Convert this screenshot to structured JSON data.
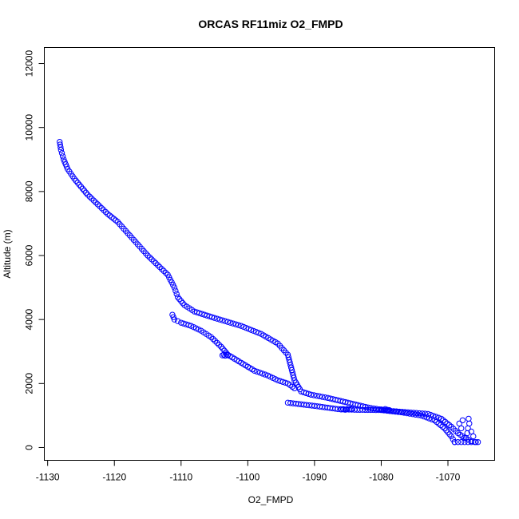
{
  "chart_data": {
    "type": "scatter",
    "title": "ORCAS RF11miz O2_FMPD",
    "xlabel": "O2_FMPD",
    "ylabel": "Altitude (m)",
    "xlim": [
      -1130.5,
      -1063
    ],
    "ylim": [
      -400,
      12500
    ],
    "xticks": [
      -1130,
      -1120,
      -1110,
      -1100,
      -1090,
      -1080,
      -1070
    ],
    "yticks": [
      0,
      2000,
      4000,
      6000,
      8000,
      10000,
      12000
    ],
    "grid": false,
    "marker": "open-circle",
    "color": "#0000ff",
    "series": [
      {
        "values": [
          [
            -1128.2,
            9550
          ],
          [
            -1128.0,
            9300
          ],
          [
            -1127.6,
            9000
          ],
          [
            -1127.0,
            8700
          ],
          [
            -1126.0,
            8400
          ],
          [
            -1125.0,
            8150
          ],
          [
            -1124.0,
            7900
          ],
          [
            -1122.5,
            7600
          ],
          [
            -1121.0,
            7300
          ],
          [
            -1119.5,
            7050
          ],
          [
            -1118.0,
            6700
          ],
          [
            -1116.5,
            6350
          ],
          [
            -1115.0,
            6000
          ],
          [
            -1113.5,
            5700
          ],
          [
            -1112.0,
            5400
          ],
          [
            -1111.0,
            5000
          ],
          [
            -1110.5,
            4700
          ],
          [
            -1109.5,
            4450
          ],
          [
            -1108.0,
            4250
          ],
          [
            -1105.0,
            4050
          ],
          [
            -1101.0,
            3800
          ],
          [
            -1098.0,
            3550
          ],
          [
            -1095.5,
            3250
          ],
          [
            -1094.0,
            2900
          ],
          [
            -1093.5,
            2500
          ],
          [
            -1093.0,
            2100
          ],
          [
            -1092.0,
            1750
          ],
          [
            -1090.5,
            1650
          ],
          [
            -1088.0,
            1550
          ],
          [
            -1085.0,
            1400
          ],
          [
            -1082.0,
            1250
          ],
          [
            -1079.0,
            1150
          ],
          [
            -1076.0,
            1100
          ],
          [
            -1073.0,
            1050
          ],
          [
            -1071.0,
            900
          ],
          [
            -1069.5,
            650
          ],
          [
            -1068.5,
            450
          ],
          [
            -1067.5,
            300
          ],
          [
            -1066.5,
            200
          ],
          [
            -1065.8,
            170
          ]
        ]
      },
      {
        "values": [
          [
            -1111.3,
            4150
          ],
          [
            -1111.0,
            4000
          ],
          [
            -1110.0,
            3900
          ],
          [
            -1108.5,
            3800
          ],
          [
            -1107.0,
            3650
          ],
          [
            -1105.5,
            3450
          ],
          [
            -1104.0,
            3150
          ],
          [
            -1103.0,
            2900
          ],
          [
            -1101.0,
            2650
          ],
          [
            -1099.0,
            2400
          ],
          [
            -1097.0,
            2250
          ],
          [
            -1095.5,
            2100
          ],
          [
            -1094.0,
            2000
          ],
          [
            -1093.0,
            1850
          ]
        ]
      },
      {
        "values": [
          [
            -1094.0,
            1400
          ],
          [
            -1090.0,
            1300
          ],
          [
            -1086.5,
            1200
          ],
          [
            -1084.0,
            1180
          ],
          [
            -1080.0,
            1170
          ],
          [
            -1077.0,
            1100
          ],
          [
            -1074.0,
            1000
          ],
          [
            -1072.0,
            850
          ],
          [
            -1070.5,
            600
          ],
          [
            -1069.5,
            350
          ],
          [
            -1069.0,
            170
          ]
        ]
      },
      {
        "values": [
          [
            -1103.8,
            2880
          ],
          [
            -1103.6,
            2900
          ],
          [
            -1103.4,
            2870
          ],
          [
            -1103.2,
            2910
          ],
          [
            -1103.0,
            2880
          ],
          [
            -1086.0,
            1190
          ],
          [
            -1085.7,
            1200
          ],
          [
            -1085.4,
            1180
          ],
          [
            -1085.1,
            1200
          ],
          [
            -1084.8,
            1190
          ],
          [
            -1084.5,
            1200
          ],
          [
            -1080.0,
            1190
          ],
          [
            -1079.7,
            1170
          ],
          [
            -1079.4,
            1200
          ],
          [
            -1079.1,
            1180
          ],
          [
            -1078.8,
            1170
          ],
          [
            -1069.0,
            170
          ],
          [
            -1068.5,
            170
          ],
          [
            -1068.0,
            170
          ],
          [
            -1067.5,
            170
          ],
          [
            -1067.0,
            170
          ],
          [
            -1066.5,
            170
          ],
          [
            -1066.0,
            170
          ],
          [
            -1065.5,
            170
          ],
          [
            -1067.3,
            300
          ],
          [
            -1067.1,
            450
          ],
          [
            -1067.0,
            600
          ],
          [
            -1066.8,
            750
          ],
          [
            -1066.9,
            900
          ],
          [
            -1067.8,
            850
          ],
          [
            -1068.3,
            750
          ],
          [
            -1068.0,
            600
          ],
          [
            -1066.5,
            500
          ],
          [
            -1066.2,
            350
          ]
        ]
      }
    ]
  }
}
